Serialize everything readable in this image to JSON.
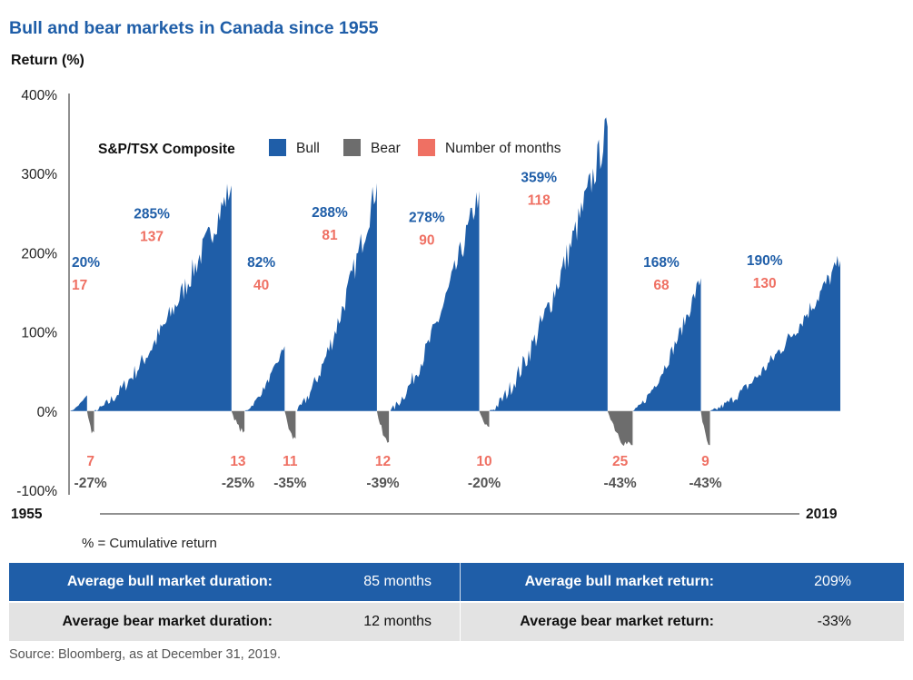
{
  "title": "Bull and bear markets in Canada since 1955",
  "footnote": "% = Cumulative return",
  "source": "Source: Bloomberg, as at December 31, 2019.",
  "colors": {
    "bull": "#1f5ea8",
    "bear": "#6d6d6d",
    "months": "#ef7063",
    "title": "#1f5ea8"
  },
  "summary": {
    "bull_duration_label": "Average bull market duration:",
    "bull_duration_value": "85 months",
    "bull_return_label": "Average bull market return:",
    "bull_return_value": "209%",
    "bear_duration_label": "Average bear market duration:",
    "bear_duration_value": "12 months",
    "bear_return_label": "Average bear market return:",
    "bear_return_value": "-33%"
  },
  "chart_data": {
    "type": "area",
    "title": "Bull and bear markets in Canada since 1955",
    "ylabel": "Return (%)",
    "ylim": [
      -100,
      400
    ],
    "y_ticks": [
      "400%",
      "300%",
      "200%",
      "100%",
      "0%",
      "-100%"
    ],
    "x_start_label": "1955",
    "x_end_label": "2019",
    "legend_title": "S&P/TSX Composite",
    "legend": [
      "Bull",
      "Bear",
      "Number of months"
    ],
    "legend_position": "top",
    "grid": false,
    "bull_markets": [
      {
        "return": 20,
        "months": 17,
        "return_label": "20%",
        "months_label": "17"
      },
      {
        "return": 285,
        "months": 137,
        "return_label": "285%",
        "months_label": "137"
      },
      {
        "return": 82,
        "months": 40,
        "return_label": "82%",
        "months_label": "40"
      },
      {
        "return": 288,
        "months": 81,
        "return_label": "288%",
        "months_label": "81"
      },
      {
        "return": 278,
        "months": 90,
        "return_label": "278%",
        "months_label": "90"
      },
      {
        "return": 359,
        "months": 118,
        "return_label": "359%",
        "months_label": "118"
      },
      {
        "return": 168,
        "months": 68,
        "return_label": "168%",
        "months_label": "68"
      },
      {
        "return": 190,
        "months": 130,
        "return_label": "190%",
        "months_label": "130"
      }
    ],
    "bear_markets": [
      {
        "return": -27,
        "months": 7,
        "return_label": "-27%",
        "months_label": "7"
      },
      {
        "return": -25,
        "months": 13,
        "return_label": "-25%",
        "months_label": "13"
      },
      {
        "return": -35,
        "months": 11,
        "return_label": "-35%",
        "months_label": "11"
      },
      {
        "return": -39,
        "months": 12,
        "return_label": "-39%",
        "months_label": "12"
      },
      {
        "return": -20,
        "months": 10,
        "return_label": "-20%",
        "months_label": "10"
      },
      {
        "return": -43,
        "months": 25,
        "return_label": "-43%",
        "months_label": "25"
      },
      {
        "return": -43,
        "months": 9,
        "return_label": "-43%",
        "months_label": "9"
      }
    ]
  }
}
